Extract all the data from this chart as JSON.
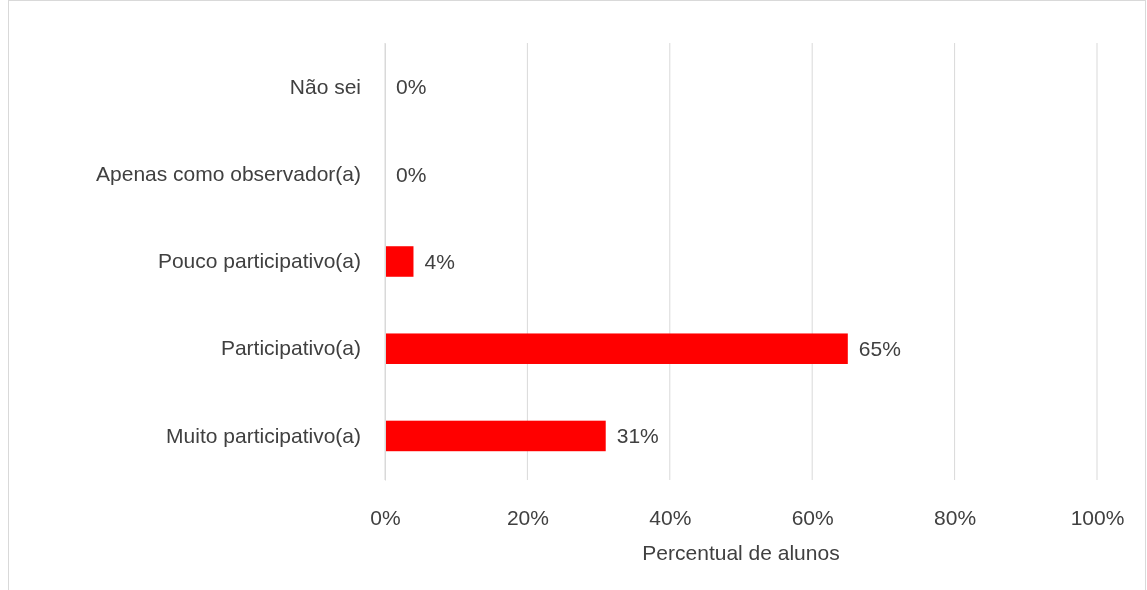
{
  "chart_data": {
    "type": "bar",
    "orientation": "horizontal",
    "categories": [
      "Não sei",
      "Apenas como observador(a)",
      "Pouco participativo(a)",
      "Participativo(a)",
      "Muito participativo(a)"
    ],
    "values": [
      0,
      0,
      4,
      65,
      31
    ],
    "value_labels": [
      "0%",
      "0%",
      "4%",
      "65%",
      "31%"
    ],
    "color": "#ff0000",
    "xlabel": "Percentual de alunos",
    "xlim": [
      0,
      100
    ],
    "xticks": [
      {
        "value": 0,
        "label": "0%"
      },
      {
        "value": 20,
        "label": "20%"
      },
      {
        "value": 40,
        "label": "40%"
      },
      {
        "value": 60,
        "label": "60%"
      },
      {
        "value": 80,
        "label": "80%"
      },
      {
        "value": 100,
        "label": "100%"
      }
    ],
    "grid": "x"
  }
}
